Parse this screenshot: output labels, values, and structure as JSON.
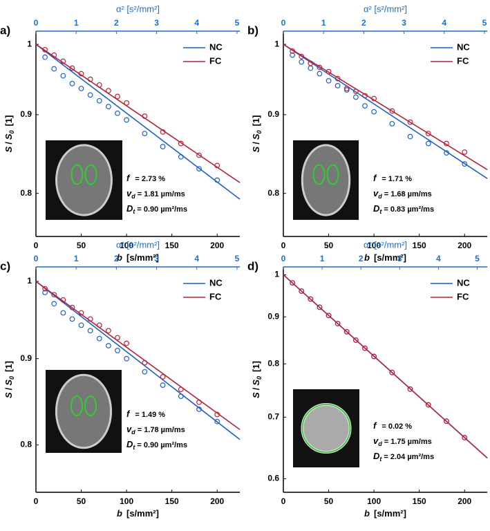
{
  "chart_data": [
    {
      "type": "scatter-fit",
      "panel_label": "a)",
      "ylog": true,
      "xlabel": {
        "symbol": "b",
        "unit": "[s/mm²]"
      },
      "ylabel": {
        "symbol": "S",
        "divider": "/",
        "symbol2": "S",
        "sub": "0",
        "unit": "[1]"
      },
      "x2label": "α² [s²/mm²]",
      "xlim": [
        0,
        225
      ],
      "xticks": [
        0,
        50,
        100,
        150,
        200
      ],
      "x2lim": [
        0,
        5.07
      ],
      "x2ticks": [
        0,
        1,
        2,
        3,
        4,
        5
      ],
      "ylim": [
        0.75,
        1.02
      ],
      "yticks": [
        0.8,
        0.9,
        1
      ],
      "legend": "upper right",
      "x": [
        10,
        20,
        30,
        40,
        50,
        60,
        70,
        80,
        90,
        100,
        120,
        140,
        160,
        180,
        200
      ],
      "series": [
        {
          "name": "NC",
          "color": "#1f5fc4",
          "values": [
            0.981,
            0.964,
            0.954,
            0.943,
            0.936,
            0.927,
            0.919,
            0.911,
            0.902,
            0.893,
            0.875,
            0.858,
            0.845,
            0.83,
            0.816
          ],
          "fit": [
            1.0,
            0.793
          ]
        },
        {
          "name": "FC",
          "color": "#b8213a",
          "values": [
            0.992,
            0.984,
            0.975,
            0.965,
            0.957,
            0.949,
            0.941,
            0.933,
            0.925,
            0.916,
            0.898,
            0.877,
            0.862,
            0.847,
            0.834
          ],
          "fit": [
            1.0,
            0.813
          ]
        }
      ],
      "annotations": [
        {
          "symbol": "f",
          "value": "= 2.73 %"
        },
        {
          "symbol": "v",
          "sub": "d",
          "value": "= 1.81 µm/ms"
        },
        {
          "symbol": "D",
          "sub": "t",
          "value": "= 0.90 µm²/ms"
        }
      ]
    },
    {
      "type": "scatter-fit",
      "panel_label": "b)",
      "ylog": true,
      "xlabel": {
        "symbol": "b",
        "unit": "[s/mm²]"
      },
      "ylabel": {
        "symbol": "S",
        "divider": "/",
        "symbol2": "S",
        "sub": "0",
        "unit": "[1]"
      },
      "x2label": "α² [s²/mm²]",
      "xlim": [
        0,
        225
      ],
      "xticks": [
        0,
        50,
        100,
        150,
        200
      ],
      "x2lim": [
        0,
        5.07
      ],
      "x2ticks": [
        0,
        1,
        2,
        3,
        4,
        5
      ],
      "ylim": [
        0.75,
        1.02
      ],
      "yticks": [
        0.8,
        0.9,
        1
      ],
      "legend": "upper right",
      "x": [
        10,
        20,
        30,
        40,
        50,
        60,
        70,
        80,
        90,
        100,
        120,
        140,
        160,
        180,
        200
      ],
      "series": [
        {
          "name": "NC",
          "color": "#1f5fc4",
          "values": [
            0.984,
            0.974,
            0.965,
            0.957,
            0.947,
            0.94,
            0.934,
            0.924,
            0.912,
            0.904,
            0.888,
            0.871,
            0.862,
            0.85,
            0.836
          ],
          "fit": [
            1.0,
            0.818
          ]
        },
        {
          "name": "FC",
          "color": "#b8213a",
          "values": [
            0.99,
            0.982,
            0.972,
            0.966,
            0.96,
            0.95,
            0.936,
            0.932,
            0.926,
            0.922,
            0.905,
            0.89,
            0.875,
            0.862,
            0.851
          ],
          "fit": [
            1.0,
            0.829
          ]
        }
      ],
      "annotations": [
        {
          "symbol": "f",
          "value": "= 1.71 %"
        },
        {
          "symbol": "v",
          "sub": "d",
          "value": "= 1.68 µm/ms"
        },
        {
          "symbol": "D",
          "sub": "t",
          "value": "= 0.83 µm²/ms"
        }
      ]
    },
    {
      "type": "scatter-fit",
      "panel_label": "c)",
      "ylog": true,
      "xlabel": {
        "symbol": "b",
        "unit": "[s/mm²]"
      },
      "ylabel": {
        "symbol": "S",
        "divider": "/",
        "symbol2": "S",
        "sub": "0",
        "unit": "[1]"
      },
      "x2label": "α² [s²/mm²]",
      "xlim": [
        0,
        225
      ],
      "xticks": [
        0,
        50,
        100,
        150,
        200
      ],
      "x2lim": [
        0,
        5.07
      ],
      "x2ticks": [
        0,
        1,
        2,
        3,
        4,
        5
      ],
      "ylim": [
        0.75,
        1.02
      ],
      "yticks": [
        0.8,
        0.9,
        1
      ],
      "legend": "upper right",
      "x": [
        10,
        20,
        30,
        40,
        50,
        60,
        70,
        80,
        90,
        100,
        120,
        140,
        160,
        180,
        200
      ],
      "series": [
        {
          "name": "NC",
          "color": "#1f5fc4",
          "values": [
            0.985,
            0.97,
            0.958,
            0.95,
            0.942,
            0.935,
            0.925,
            0.916,
            0.91,
            0.9,
            0.884,
            0.868,
            0.855,
            0.84,
            0.826
          ],
          "fit": [
            1.0,
            0.806
          ]
        },
        {
          "name": "FC",
          "color": "#b8213a",
          "values": [
            0.99,
            0.982,
            0.975,
            0.965,
            0.958,
            0.95,
            0.942,
            0.935,
            0.926,
            0.919,
            0.895,
            0.878,
            0.863,
            0.848,
            0.834
          ],
          "fit": [
            1.0,
            0.817
          ]
        }
      ],
      "annotations": [
        {
          "symbol": "f",
          "value": "= 1.49 %"
        },
        {
          "symbol": "v",
          "sub": "d",
          "value": "= 1.78 µm/ms"
        },
        {
          "symbol": "D",
          "sub": "t",
          "value": "= 0.90 µm²/ms"
        }
      ]
    },
    {
      "type": "scatter-fit",
      "panel_label": "d)",
      "ylog": true,
      "xlabel": {
        "symbol": "b",
        "unit": "[s/mm²]"
      },
      "ylabel": {
        "symbol": "S",
        "divider": "/",
        "symbol2": "S",
        "sub": "0",
        "unit": "[1]"
      },
      "x2label": "α² [s²/mm²]",
      "xlim": [
        0,
        225
      ],
      "xticks": [
        0,
        50,
        100,
        150,
        200
      ],
      "x2lim": [
        0,
        5.26
      ],
      "x2ticks": [
        0,
        1,
        2,
        3,
        4,
        5
      ],
      "ylim": [
        0.58,
        1.02
      ],
      "yticks": [
        0.6,
        0.7,
        0.8,
        0.9,
        1
      ],
      "legend": "upper right",
      "x": [
        10,
        20,
        30,
        40,
        50,
        60,
        70,
        80,
        90,
        100,
        120,
        140,
        160,
        180,
        200
      ],
      "series": [
        {
          "name": "NC",
          "color": "#1f5fc4",
          "values": [
            0.98,
            0.96,
            0.941,
            0.922,
            0.903,
            0.885,
            0.867,
            0.849,
            0.832,
            0.815,
            0.783,
            0.751,
            0.722,
            0.693,
            0.665
          ],
          "fit": [
            1.0,
            0.632
          ]
        },
        {
          "name": "FC",
          "color": "#b8213a",
          "values": [
            0.98,
            0.96,
            0.941,
            0.922,
            0.903,
            0.885,
            0.867,
            0.849,
            0.832,
            0.815,
            0.783,
            0.751,
            0.722,
            0.693,
            0.665
          ],
          "fit": [
            1.0,
            0.632
          ]
        }
      ],
      "annotations": [
        {
          "symbol": "f",
          "value": "= 0.02 %"
        },
        {
          "symbol": "v",
          "sub": "d",
          "value": "= 1.75 µm/ms"
        },
        {
          "symbol": "D",
          "sub": "t",
          "value": "= 2.04 µm²/ms"
        }
      ]
    }
  ]
}
